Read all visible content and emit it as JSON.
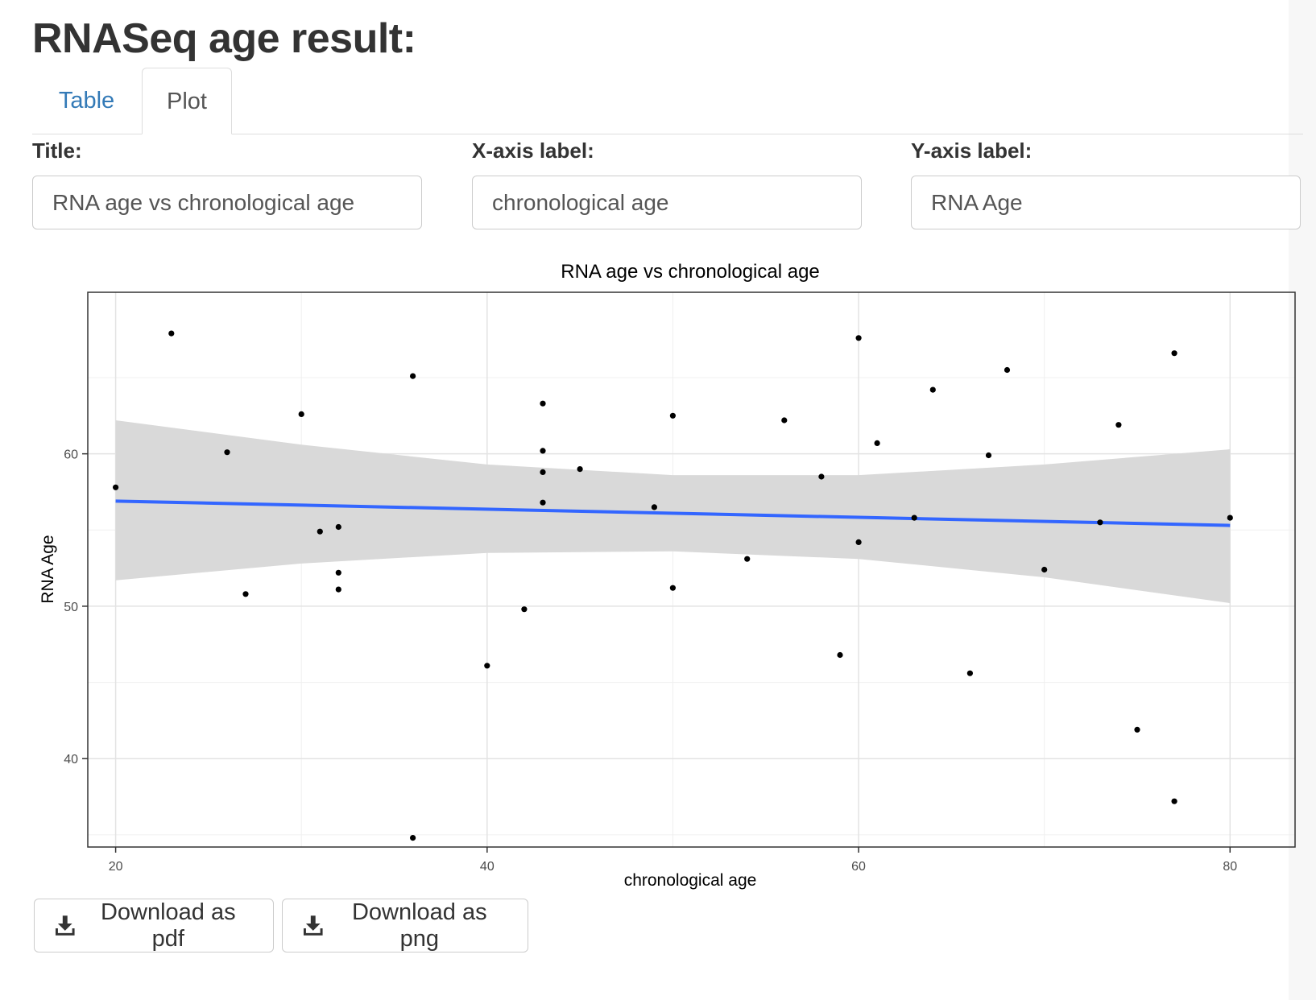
{
  "page": {
    "title": "RNASeq age result:"
  },
  "tabs": [
    {
      "label": "Table",
      "active": false
    },
    {
      "label": "Plot",
      "active": true
    }
  ],
  "fields": {
    "title": {
      "label": "Title:",
      "value": "RNA age vs chronological age"
    },
    "xlabel": {
      "label": "X-axis label:",
      "value": "chronological age"
    },
    "ylabel": {
      "label": "Y-axis label:",
      "value": "RNA Age"
    }
  },
  "buttons": {
    "pdf": {
      "label": "Download as pdf",
      "icon": "download-icon"
    },
    "png": {
      "label": "Download as png",
      "icon": "download-icon"
    }
  },
  "colors": {
    "link": "#337ab7",
    "fit_line": "#3366ff",
    "ribbon": "#d9d9d9",
    "points": "#000000"
  },
  "chart_data": {
    "type": "scatter",
    "title": "RNA age vs chronological age",
    "xlabel": "chronological age",
    "ylabel": "RNA Age",
    "xlim": [
      18.5,
      83.5
    ],
    "ylim": [
      34.2,
      70.6
    ],
    "x_ticks": [
      20,
      40,
      60,
      80
    ],
    "y_ticks": [
      40,
      50,
      60
    ],
    "grid": true,
    "points": [
      [
        20,
        57.8
      ],
      [
        23,
        67.9
      ],
      [
        26,
        60.1
      ],
      [
        27,
        50.8
      ],
      [
        30,
        62.6
      ],
      [
        31,
        54.9
      ],
      [
        32,
        55.2
      ],
      [
        32,
        52.2
      ],
      [
        32,
        51.1
      ],
      [
        36,
        65.1
      ],
      [
        36,
        34.8
      ],
      [
        40,
        46.1
      ],
      [
        42,
        49.8
      ],
      [
        43,
        63.3
      ],
      [
        43,
        60.2
      ],
      [
        43,
        58.8
      ],
      [
        43,
        56.8
      ],
      [
        45,
        59.0
      ],
      [
        49,
        56.5
      ],
      [
        50,
        62.5
      ],
      [
        50,
        51.2
      ],
      [
        54,
        53.1
      ],
      [
        56,
        62.2
      ],
      [
        58,
        58.5
      ],
      [
        59,
        46.8
      ],
      [
        60,
        67.6
      ],
      [
        60,
        54.2
      ],
      [
        61,
        60.7
      ],
      [
        63,
        55.8
      ],
      [
        64,
        64.2
      ],
      [
        66,
        45.6
      ],
      [
        67,
        59.9
      ],
      [
        68,
        65.5
      ],
      [
        70,
        52.4
      ],
      [
        73,
        55.5
      ],
      [
        74,
        61.9
      ],
      [
        75,
        41.9
      ],
      [
        77,
        66.6
      ],
      [
        77,
        37.2
      ],
      [
        80,
        55.8
      ]
    ],
    "fit": {
      "method": "lm",
      "x": [
        20,
        80
      ],
      "y": [
        56.9,
        55.3
      ]
    },
    "ribbon": {
      "x": [
        20,
        30,
        40,
        50,
        60,
        70,
        80
      ],
      "upper": [
        62.2,
        60.6,
        59.3,
        58.6,
        58.6,
        59.3,
        60.3
      ],
      "lower": [
        51.7,
        52.8,
        53.5,
        53.6,
        53.1,
        51.9,
        50.2
      ]
    }
  }
}
